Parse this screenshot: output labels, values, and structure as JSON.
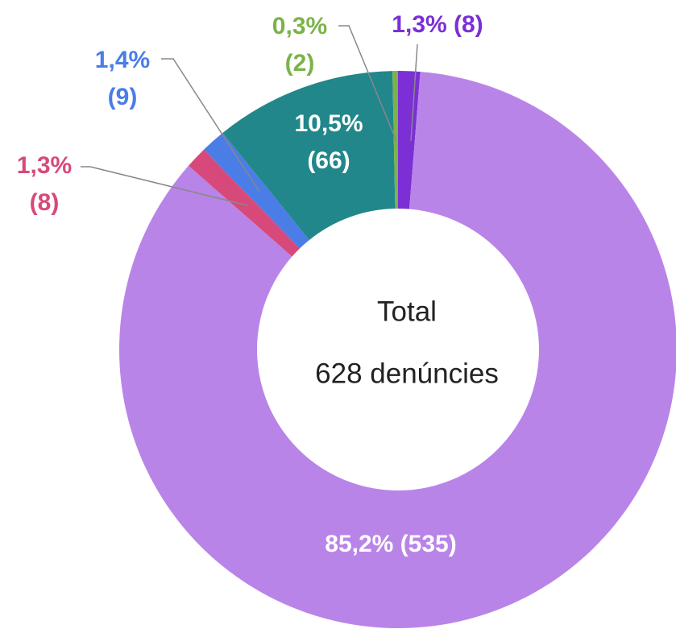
{
  "chart_data": {
    "type": "donut",
    "categories": [
      null,
      null,
      null,
      null,
      null,
      null
    ],
    "values": [
      8,
      535,
      8,
      9,
      66,
      2
    ],
    "value_labels": [
      [
        "1,3% (8)"
      ],
      [
        "85,2% (535)"
      ],
      [
        "1,3%",
        "(8)"
      ],
      [
        "1,4%",
        "(9)"
      ],
      [
        "10,5%",
        "(66)"
      ],
      [
        "0,3%",
        "(2)"
      ]
    ],
    "colors": [
      "#7b2fd4",
      "#b984e8",
      "#d8497b",
      "#4a7de6",
      "#21878b",
      "#7bb34a"
    ],
    "center_text": [
      "Total",
      "628 denúncies"
    ]
  }
}
